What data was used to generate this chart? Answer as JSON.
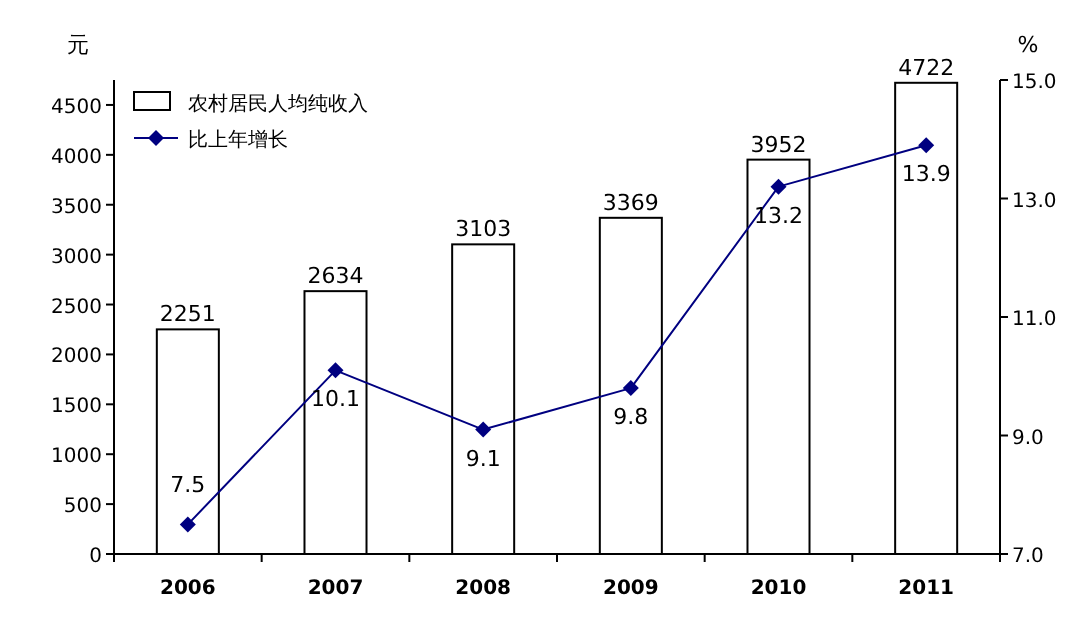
{
  "chart_data": {
    "type": "bar",
    "ylabel": "元",
    "y2label": "%",
    "categories": [
      "2006",
      "2007",
      "2008",
      "2009",
      "2010",
      "2011"
    ],
    "series": [
      {
        "name": "农村居民人均纯收入",
        "color": "#ffffff",
        "values": [
          2251,
          2634,
          3103,
          3369,
          3952,
          4722
        ]
      },
      {
        "name": "比上年增长",
        "type": "line",
        "axis": "y2",
        "color": "#000080",
        "marker": "diamond",
        "line_style": "solid",
        "values": [
          7.5,
          10.1,
          9.1,
          9.8,
          13.2,
          13.9
        ]
      }
    ],
    "ylim": [
      0,
      4750
    ],
    "yticks": [
      0,
      500,
      1000,
      1500,
      2000,
      2500,
      3000,
      3500,
      4000,
      4500
    ],
    "y2lim": [
      7,
      15
    ],
    "y2ticks": [
      {
        "value": 7,
        "label": "7.0"
      },
      {
        "value": 9,
        "label": "9.0"
      },
      {
        "value": 11,
        "label": "11.0"
      },
      {
        "value": 13,
        "label": "13.0"
      },
      {
        "value": 15,
        "label": "15.0"
      }
    ],
    "data_labels": true,
    "legend": "top left",
    "grid": false
  }
}
